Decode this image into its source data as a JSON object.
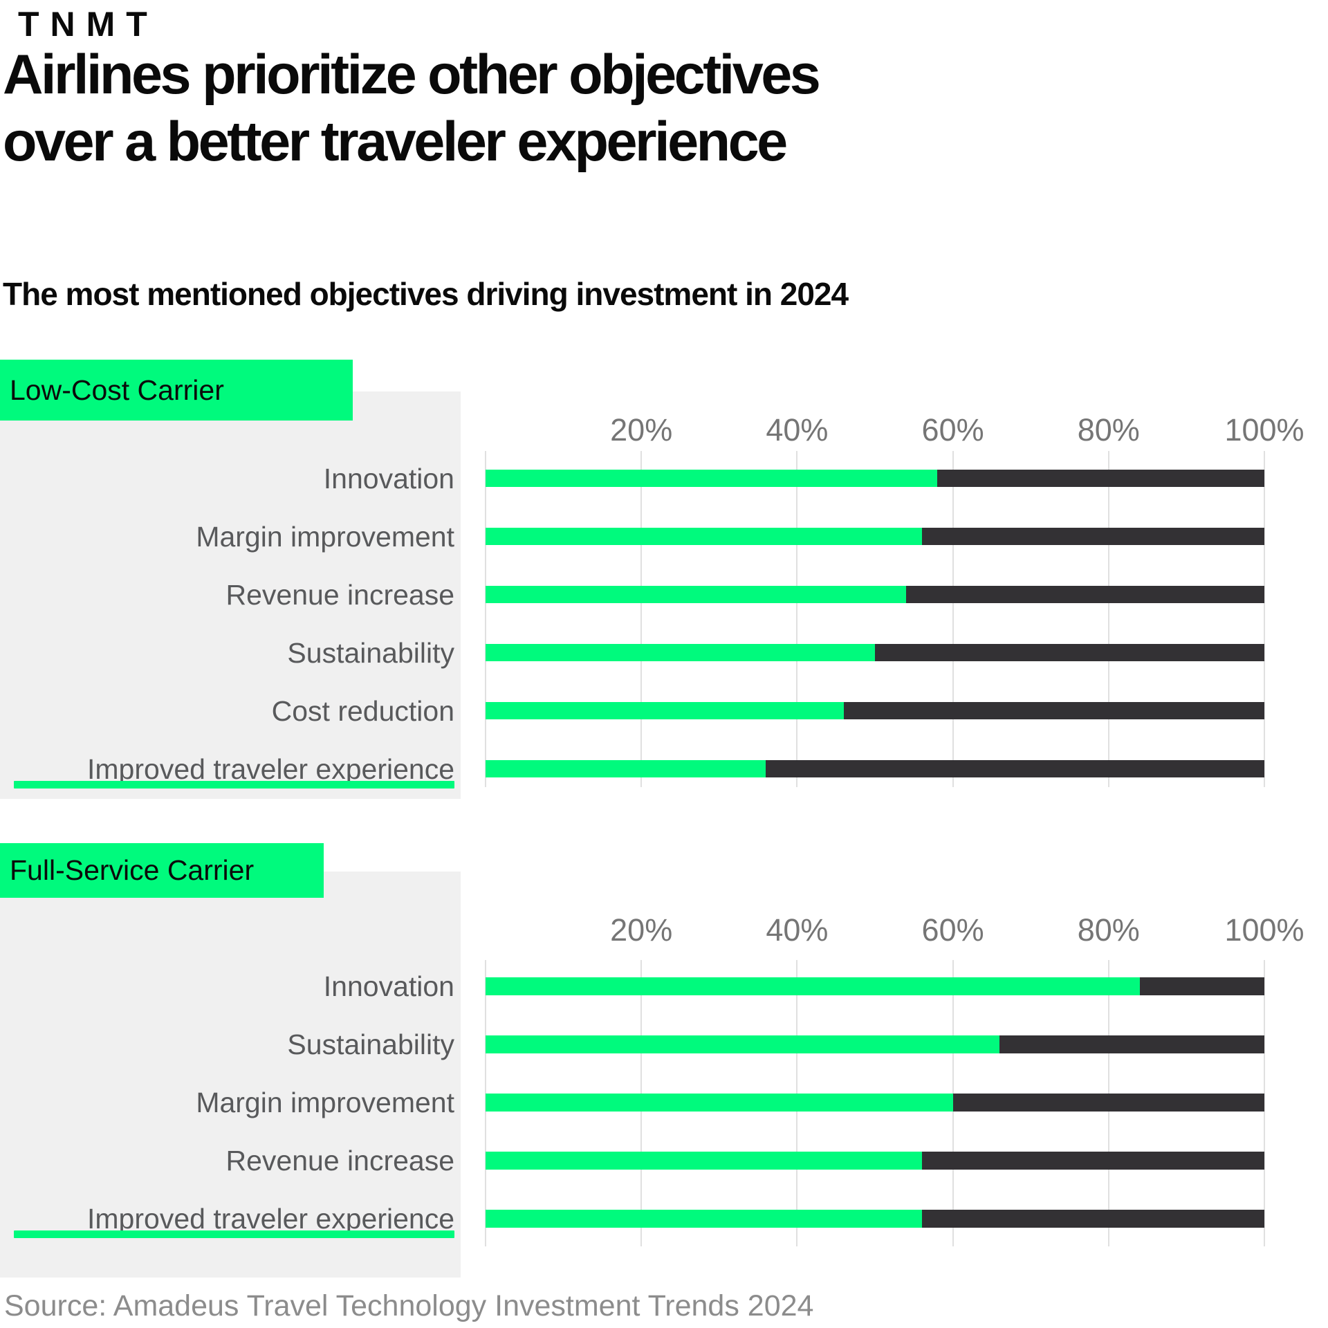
{
  "logo": {
    "text": "TNMT"
  },
  "title": "Airlines prioritize other objectives\nover a better traveler experience",
  "subtitle": "The most mentioned objectives driving investment in 2024",
  "source": "Source: Amadeus Travel Technology Investment Trends 2024",
  "colors": {
    "brand_green": "#00fa7d",
    "bar_dark": "#333134",
    "panel_gray": "#f0f0f0",
    "label_gray": "#58595b",
    "axis_gray": "#757575",
    "source_gray": "#8c8c8c",
    "gridline_gray": "#e0e0e0"
  },
  "chart_data": [
    {
      "type": "bar",
      "group_label": "Low-Cost Carrier",
      "orientation": "horizontal",
      "unit": "%",
      "xlim": [
        0,
        100
      ],
      "x_ticks": [
        "20%",
        "40%",
        "60%",
        "80%",
        "100%"
      ],
      "x_tick_values": [
        20,
        40,
        60,
        80,
        100
      ],
      "grid": true,
      "categories": [
        "Innovation",
        "Margin improvement",
        "Revenue increase",
        "Sustainability",
        "Cost reduction",
        "Improved traveler experience"
      ],
      "values": [
        58,
        56,
        54,
        50,
        46,
        36
      ],
      "remainder_to": 100,
      "highlighted_category": "Improved traveler experience"
    },
    {
      "type": "bar",
      "group_label": "Full-Service Carrier",
      "orientation": "horizontal",
      "unit": "%",
      "xlim": [
        0,
        100
      ],
      "x_ticks": [
        "20%",
        "40%",
        "60%",
        "80%",
        "100%"
      ],
      "x_tick_values": [
        20,
        40,
        60,
        80,
        100
      ],
      "grid": true,
      "categories": [
        "Innovation",
        "Sustainability",
        "Margin improvement",
        "Revenue increase",
        "Improved traveler experience"
      ],
      "values": [
        84,
        66,
        60,
        56,
        56
      ],
      "remainder_to": 100,
      "highlighted_category": "Improved traveler experience"
    }
  ]
}
